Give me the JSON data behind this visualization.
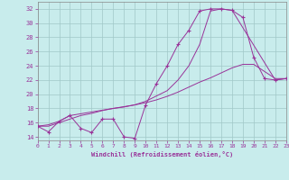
{
  "xlabel": "Windchill (Refroidissement éolien,°C)",
  "xlim": [
    0,
    23
  ],
  "ylim": [
    13.5,
    33
  ],
  "yticks": [
    14,
    16,
    18,
    20,
    22,
    24,
    26,
    28,
    30,
    32
  ],
  "xticks": [
    0,
    1,
    2,
    3,
    4,
    5,
    6,
    7,
    8,
    9,
    10,
    11,
    12,
    13,
    14,
    15,
    16,
    17,
    18,
    19,
    20,
    21,
    22,
    23
  ],
  "background_color": "#c8ecec",
  "line_color": "#993399",
  "grid_color": "#a0c8c8",
  "curve1_x": [
    0,
    1,
    2,
    3,
    4,
    5,
    6,
    7,
    8,
    9,
    10,
    11,
    12,
    13,
    14,
    15,
    16,
    17,
    18,
    19,
    20,
    21,
    22,
    23
  ],
  "curve1_y": [
    15.5,
    14.7,
    16.2,
    17.0,
    15.2,
    14.6,
    16.5,
    16.5,
    14.0,
    13.8,
    18.5,
    21.5,
    24.0,
    27.0,
    29.0,
    31.7,
    32.0,
    32.0,
    31.8,
    30.8,
    25.2,
    22.2,
    22.0,
    22.2
  ],
  "curve2_x": [
    0,
    1,
    2,
    3,
    4,
    5,
    6,
    7,
    8,
    9,
    10,
    11,
    12,
    13,
    14,
    15,
    16,
    17,
    18,
    19,
    20,
    21,
    22,
    23
  ],
  "curve2_y": [
    15.5,
    15.5,
    16.0,
    16.5,
    17.0,
    17.3,
    17.7,
    18.0,
    18.2,
    18.5,
    18.8,
    19.2,
    19.7,
    20.3,
    21.0,
    21.7,
    22.3,
    23.0,
    23.7,
    24.2,
    24.2,
    23.2,
    22.2,
    22.2
  ],
  "curve3_x": [
    0,
    1,
    2,
    3,
    9,
    10,
    12,
    13,
    14,
    15,
    16,
    17,
    18,
    22,
    23
  ],
  "curve3_y": [
    15.5,
    15.7,
    16.2,
    17.0,
    18.5,
    19.0,
    20.5,
    22.0,
    24.0,
    27.0,
    31.7,
    32.0,
    31.8,
    22.0,
    22.2
  ]
}
